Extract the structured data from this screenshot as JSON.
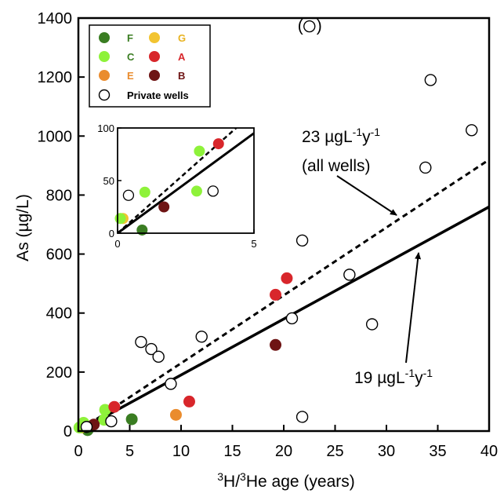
{
  "chart_data": [
    {
      "type": "scatter",
      "title": "",
      "xlabel": "3H/3He age (years)",
      "ylabel": "As (µg/L)",
      "xlim": [
        0,
        40
      ],
      "ylim": [
        0,
        1400
      ],
      "x_ticks": [
        "0",
        "5",
        "10",
        "15",
        "20",
        "25",
        "30",
        "35",
        "40"
      ],
      "y_ticks": [
        "0",
        "200",
        "400",
        "600",
        "800",
        "1000",
        "1200",
        "1400"
      ],
      "grid": false,
      "legend_position": "top-left",
      "legend": [
        {
          "label": "F",
          "color": "#3a7d22",
          "filled": true
        },
        {
          "label": "G",
          "color": "#f2c431",
          "filled": true
        },
        {
          "label": "C",
          "color": "#8ef23a",
          "filled": true
        },
        {
          "label": "A",
          "color": "#d8262b",
          "filled": true
        },
        {
          "label": "E",
          "color": "#ea8c2e",
          "filled": true
        },
        {
          "label": "B",
          "color": "#6e1414",
          "filled": true
        },
        {
          "label": "Private wells",
          "color": "#000000",
          "filled": false
        }
      ],
      "series": [
        {
          "name": "F",
          "color": "#3a7d22",
          "points": [
            [
              5.2,
              40
            ],
            [
              0.9,
              3
            ]
          ]
        },
        {
          "name": "G",
          "color": "#f2c431",
          "points": [
            [
              0.3,
              12
            ]
          ]
        },
        {
          "name": "C",
          "color": "#8ef23a",
          "points": [
            [
              0.1,
              12
            ],
            [
              0.5,
              28
            ],
            [
              2.5,
              38
            ],
            [
              2.6,
              72
            ]
          ]
        },
        {
          "name": "A",
          "color": "#d8262b",
          "points": [
            [
              3.5,
              82
            ],
            [
              10.8,
              100
            ],
            [
              19.2,
              462
            ],
            [
              20.3,
              518
            ]
          ]
        },
        {
          "name": "E",
          "color": "#ea8c2e",
          "points": [
            [
              9.5,
              55
            ]
          ]
        },
        {
          "name": "B",
          "color": "#6e1414",
          "points": [
            [
              1.5,
              22
            ],
            [
              19.2,
              292
            ]
          ]
        },
        {
          "name": "Private wells",
          "color": "#000000",
          "open": true,
          "points": [
            [
              0.8,
              14
            ],
            [
              3.2,
              33
            ],
            [
              6.1,
              302
            ],
            [
              7.1,
              278
            ],
            [
              7.8,
              252
            ],
            [
              9.0,
              160
            ],
            [
              12.0,
              320
            ],
            [
              20.8,
              382
            ],
            [
              21.8,
              646
            ],
            [
              21.8,
              48
            ],
            [
              22.5,
              1372
            ],
            [
              26.4,
              530
            ],
            [
              28.6,
              362
            ],
            [
              33.8,
              893
            ],
            [
              34.3,
              1190
            ],
            [
              38.3,
              1020
            ]
          ]
        }
      ],
      "lines": [
        {
          "style": "dashed",
          "label": "23 µgL-1y-1 (all wells)",
          "slope": 23,
          "x_range": [
            1,
            40
          ]
        },
        {
          "style": "solid",
          "label": "19 µgL-1y-1",
          "slope": 19,
          "x_range": [
            0,
            40
          ]
        }
      ],
      "annotations": [
        "(",
        ")"
      ]
    },
    {
      "type": "scatter",
      "position": "inset",
      "xlim": [
        0,
        5
      ],
      "ylim": [
        0,
        100
      ],
      "x_ticks": [
        "0",
        "5"
      ],
      "y_ticks": [
        "0",
        "50",
        "100"
      ],
      "series": [
        {
          "name": "F",
          "color": "#3a7d22",
          "points": [
            [
              0.9,
              3
            ]
          ]
        },
        {
          "name": "G",
          "color": "#f2c431",
          "points": [
            [
              0.2,
              14
            ]
          ]
        },
        {
          "name": "C",
          "color": "#8ef23a",
          "points": [
            [
              0.1,
              14
            ],
            [
              1.0,
              39
            ],
            [
              2.9,
              40
            ],
            [
              3.0,
              78
            ]
          ]
        },
        {
          "name": "A",
          "color": "#d8262b",
          "points": [
            [
              3.7,
              85
            ]
          ]
        },
        {
          "name": "B",
          "color": "#6e1414",
          "points": [
            [
              1.7,
              25
            ]
          ]
        },
        {
          "name": "Private wells",
          "color": "#000000",
          "open": true,
          "points": [
            [
              0.4,
              36
            ],
            [
              3.5,
              40
            ]
          ]
        }
      ],
      "lines": [
        {
          "style": "dashed",
          "slope": 23
        },
        {
          "style": "solid",
          "slope": 19
        }
      ]
    }
  ]
}
